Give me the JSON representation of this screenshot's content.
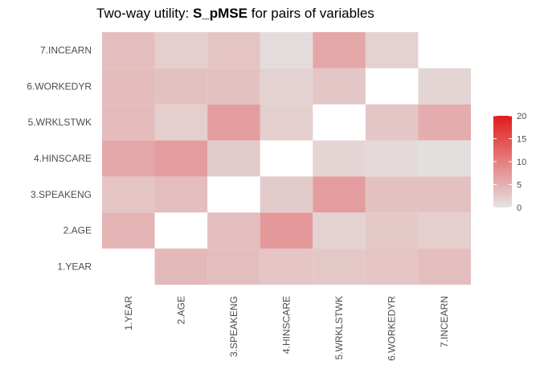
{
  "chart_data": {
    "type": "heatmap",
    "title": {
      "prefix": "Two-way utility: ",
      "metric": "S_pMSE",
      "suffix": " for pairs of variables"
    },
    "xlabel": "",
    "ylabel": "",
    "variables": [
      "1.YEAR",
      "2.AGE",
      "3.SPEAKENG",
      "4.HINSCARE",
      "5.WRKLSTWK",
      "6.WORKEDYR",
      "7.INCEARN"
    ],
    "colors": {
      "low": "#e4e4e4",
      "high": "#e31a1c",
      "background": "#ffffff"
    },
    "legend": {
      "position": "right",
      "min": 0,
      "max": 20,
      "ticks": [
        "0",
        "5",
        "10",
        "15",
        "20"
      ]
    },
    "cells": [
      {
        "x": "2.AGE",
        "y": "1.YEAR",
        "value": 4.3
      },
      {
        "x": "3.SPEAKENG",
        "y": "1.YEAR",
        "value": 3.8
      },
      {
        "x": "4.HINSCARE",
        "y": "1.YEAR",
        "value": 3.2
      },
      {
        "x": "5.WRKLSTWK",
        "y": "1.YEAR",
        "value": 2.8
      },
      {
        "x": "6.WORKEDYR",
        "y": "1.YEAR",
        "value": 3.2
      },
      {
        "x": "7.INCEARN",
        "y": "1.YEAR",
        "value": 3.8
      },
      {
        "x": "1.YEAR",
        "y": "2.AGE",
        "value": 4.8
      },
      {
        "x": "3.SPEAKENG",
        "y": "2.AGE",
        "value": 3.8
      },
      {
        "x": "4.HINSCARE",
        "y": "2.AGE",
        "value": 7.5
      },
      {
        "x": "5.WRKLSTWK",
        "y": "2.AGE",
        "value": 1.8
      },
      {
        "x": "6.WORKEDYR",
        "y": "2.AGE",
        "value": 2.8
      },
      {
        "x": "7.INCEARN",
        "y": "2.AGE",
        "value": 2.2
      },
      {
        "x": "1.YEAR",
        "y": "3.SPEAKENG",
        "value": 3.2
      },
      {
        "x": "2.AGE",
        "y": "3.SPEAKENG",
        "value": 3.8
      },
      {
        "x": "4.HINSCARE",
        "y": "3.SPEAKENG",
        "value": 2.5
      },
      {
        "x": "5.WRKLSTWK",
        "y": "3.SPEAKENG",
        "value": 7.0
      },
      {
        "x": "6.WORKEDYR",
        "y": "3.SPEAKENG",
        "value": 3.5
      },
      {
        "x": "7.INCEARN",
        "y": "3.SPEAKENG",
        "value": 3.5
      },
      {
        "x": "1.YEAR",
        "y": "4.HINSCARE",
        "value": 6.0
      },
      {
        "x": "2.AGE",
        "y": "4.HINSCARE",
        "value": 7.0
      },
      {
        "x": "3.SPEAKENG",
        "y": "4.HINSCARE",
        "value": 2.5
      },
      {
        "x": "5.WRKLSTWK",
        "y": "4.HINSCARE",
        "value": 1.5
      },
      {
        "x": "6.WORKEDYR",
        "y": "4.HINSCARE",
        "value": 1.0
      },
      {
        "x": "7.INCEARN",
        "y": "4.HINSCARE",
        "value": 0.5
      },
      {
        "x": "1.YEAR",
        "y": "5.WRKLSTWK",
        "value": 4.0
      },
      {
        "x": "2.AGE",
        "y": "5.WRKLSTWK",
        "value": 2.2
      },
      {
        "x": "3.SPEAKENG",
        "y": "5.WRKLSTWK",
        "value": 7.0
      },
      {
        "x": "4.HINSCARE",
        "y": "5.WRKLSTWK",
        "value": 2.2
      },
      {
        "x": "6.WORKEDYR",
        "y": "5.WRKLSTWK",
        "value": 3.0
      },
      {
        "x": "7.INCEARN",
        "y": "5.WRKLSTWK",
        "value": 5.5
      },
      {
        "x": "1.YEAR",
        "y": "6.WORKEDYR",
        "value": 4.0
      },
      {
        "x": "2.AGE",
        "y": "6.WORKEDYR",
        "value": 3.5
      },
      {
        "x": "3.SPEAKENG",
        "y": "6.WORKEDYR",
        "value": 3.5
      },
      {
        "x": "4.HINSCARE",
        "y": "6.WORKEDYR",
        "value": 1.8
      },
      {
        "x": "5.WRKLSTWK",
        "y": "6.WORKEDYR",
        "value": 3.0
      },
      {
        "x": "7.INCEARN",
        "y": "6.WORKEDYR",
        "value": 1.5
      },
      {
        "x": "1.YEAR",
        "y": "7.INCEARN",
        "value": 3.8
      },
      {
        "x": "2.AGE",
        "y": "7.INCEARN",
        "value": 2.2
      },
      {
        "x": "3.SPEAKENG",
        "y": "7.INCEARN",
        "value": 3.2
      },
      {
        "x": "4.HINSCARE",
        "y": "7.INCEARN",
        "value": 0.8
      },
      {
        "x": "5.WRKLSTWK",
        "y": "7.INCEARN",
        "value": 6.0
      },
      {
        "x": "6.WORKEDYR",
        "y": "7.INCEARN",
        "value": 1.8
      }
    ]
  }
}
